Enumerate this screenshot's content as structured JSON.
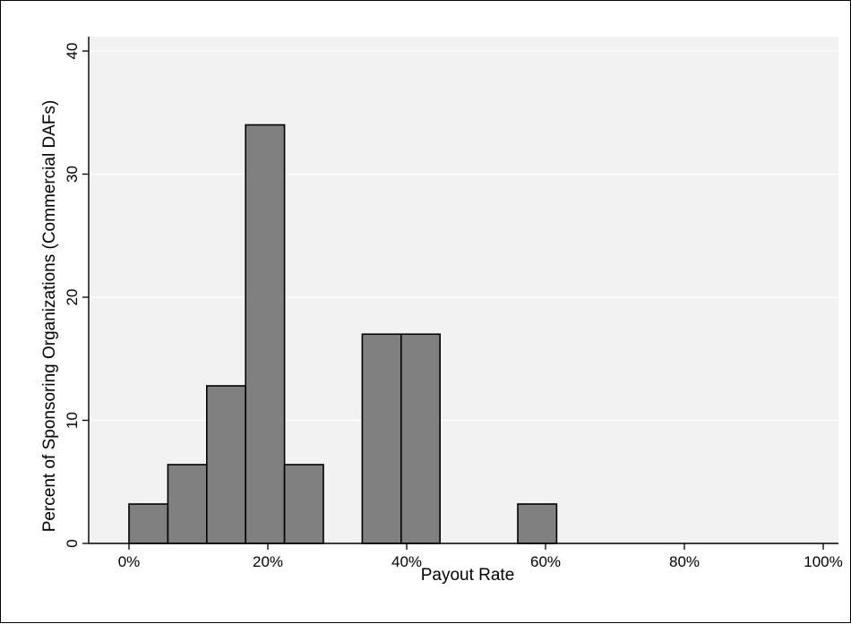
{
  "chart_data": {
    "type": "bar",
    "title": "",
    "xlabel": "Payout Rate",
    "ylabel": "Percent of Sponsoring Organizations (Commercial DAFs)",
    "xlim": [
      0,
      1
    ],
    "ylim": [
      0,
      40
    ],
    "x_ticks": [
      {
        "value": 0,
        "label": "0%"
      },
      {
        "value": 0.2,
        "label": "20%"
      },
      {
        "value": 0.4,
        "label": "40%"
      },
      {
        "value": 0.6,
        "label": "60%"
      },
      {
        "value": 0.8,
        "label": "80%"
      },
      {
        "value": 1,
        "label": "100%"
      }
    ],
    "y_ticks": [
      {
        "value": 0,
        "label": "0"
      },
      {
        "value": 10,
        "label": "10"
      },
      {
        "value": 20,
        "label": "20"
      },
      {
        "value": 30,
        "label": "30"
      },
      {
        "value": 40,
        "label": "40"
      }
    ],
    "bins": [
      {
        "start": 0.0,
        "end": 0.056,
        "value": 3.2
      },
      {
        "start": 0.056,
        "end": 0.112,
        "value": 6.4
      },
      {
        "start": 0.112,
        "end": 0.168,
        "value": 12.8
      },
      {
        "start": 0.168,
        "end": 0.224,
        "value": 34.0
      },
      {
        "start": 0.224,
        "end": 0.28,
        "value": 6.4
      },
      {
        "start": 0.336,
        "end": 0.392,
        "value": 17.0
      },
      {
        "start": 0.392,
        "end": 0.448,
        "value": 17.0
      },
      {
        "start": 0.56,
        "end": 0.616,
        "value": 3.2
      }
    ],
    "grid": true,
    "bar_color": "#808080",
    "bar_outline_color": "#000000",
    "plot_background": "#f2f2f2",
    "grid_color": "#ffffff"
  }
}
